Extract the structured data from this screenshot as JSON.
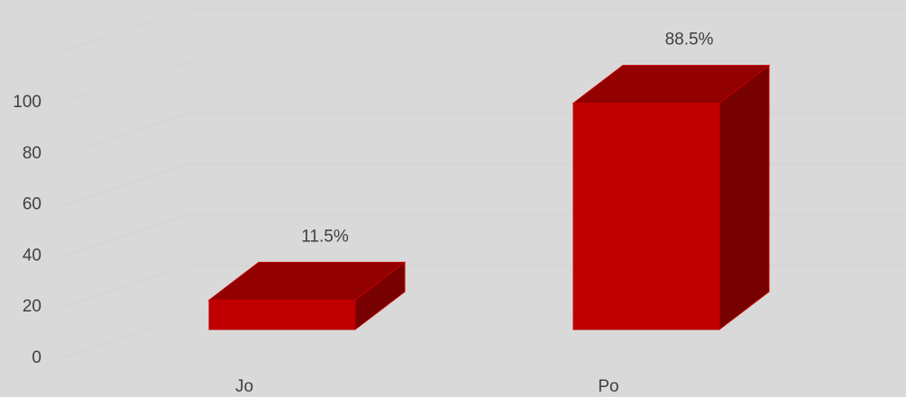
{
  "chart_data": {
    "type": "bar3d",
    "categories": [
      "Jo",
      "Po"
    ],
    "values": [
      11.5,
      88.5
    ],
    "value_labels": [
      "11.5%",
      "88.5%"
    ],
    "color": "#c00000",
    "ylim": [
      0,
      120
    ],
    "yticks": [
      0,
      20,
      40,
      60,
      80,
      100
    ],
    "grid": true
  }
}
